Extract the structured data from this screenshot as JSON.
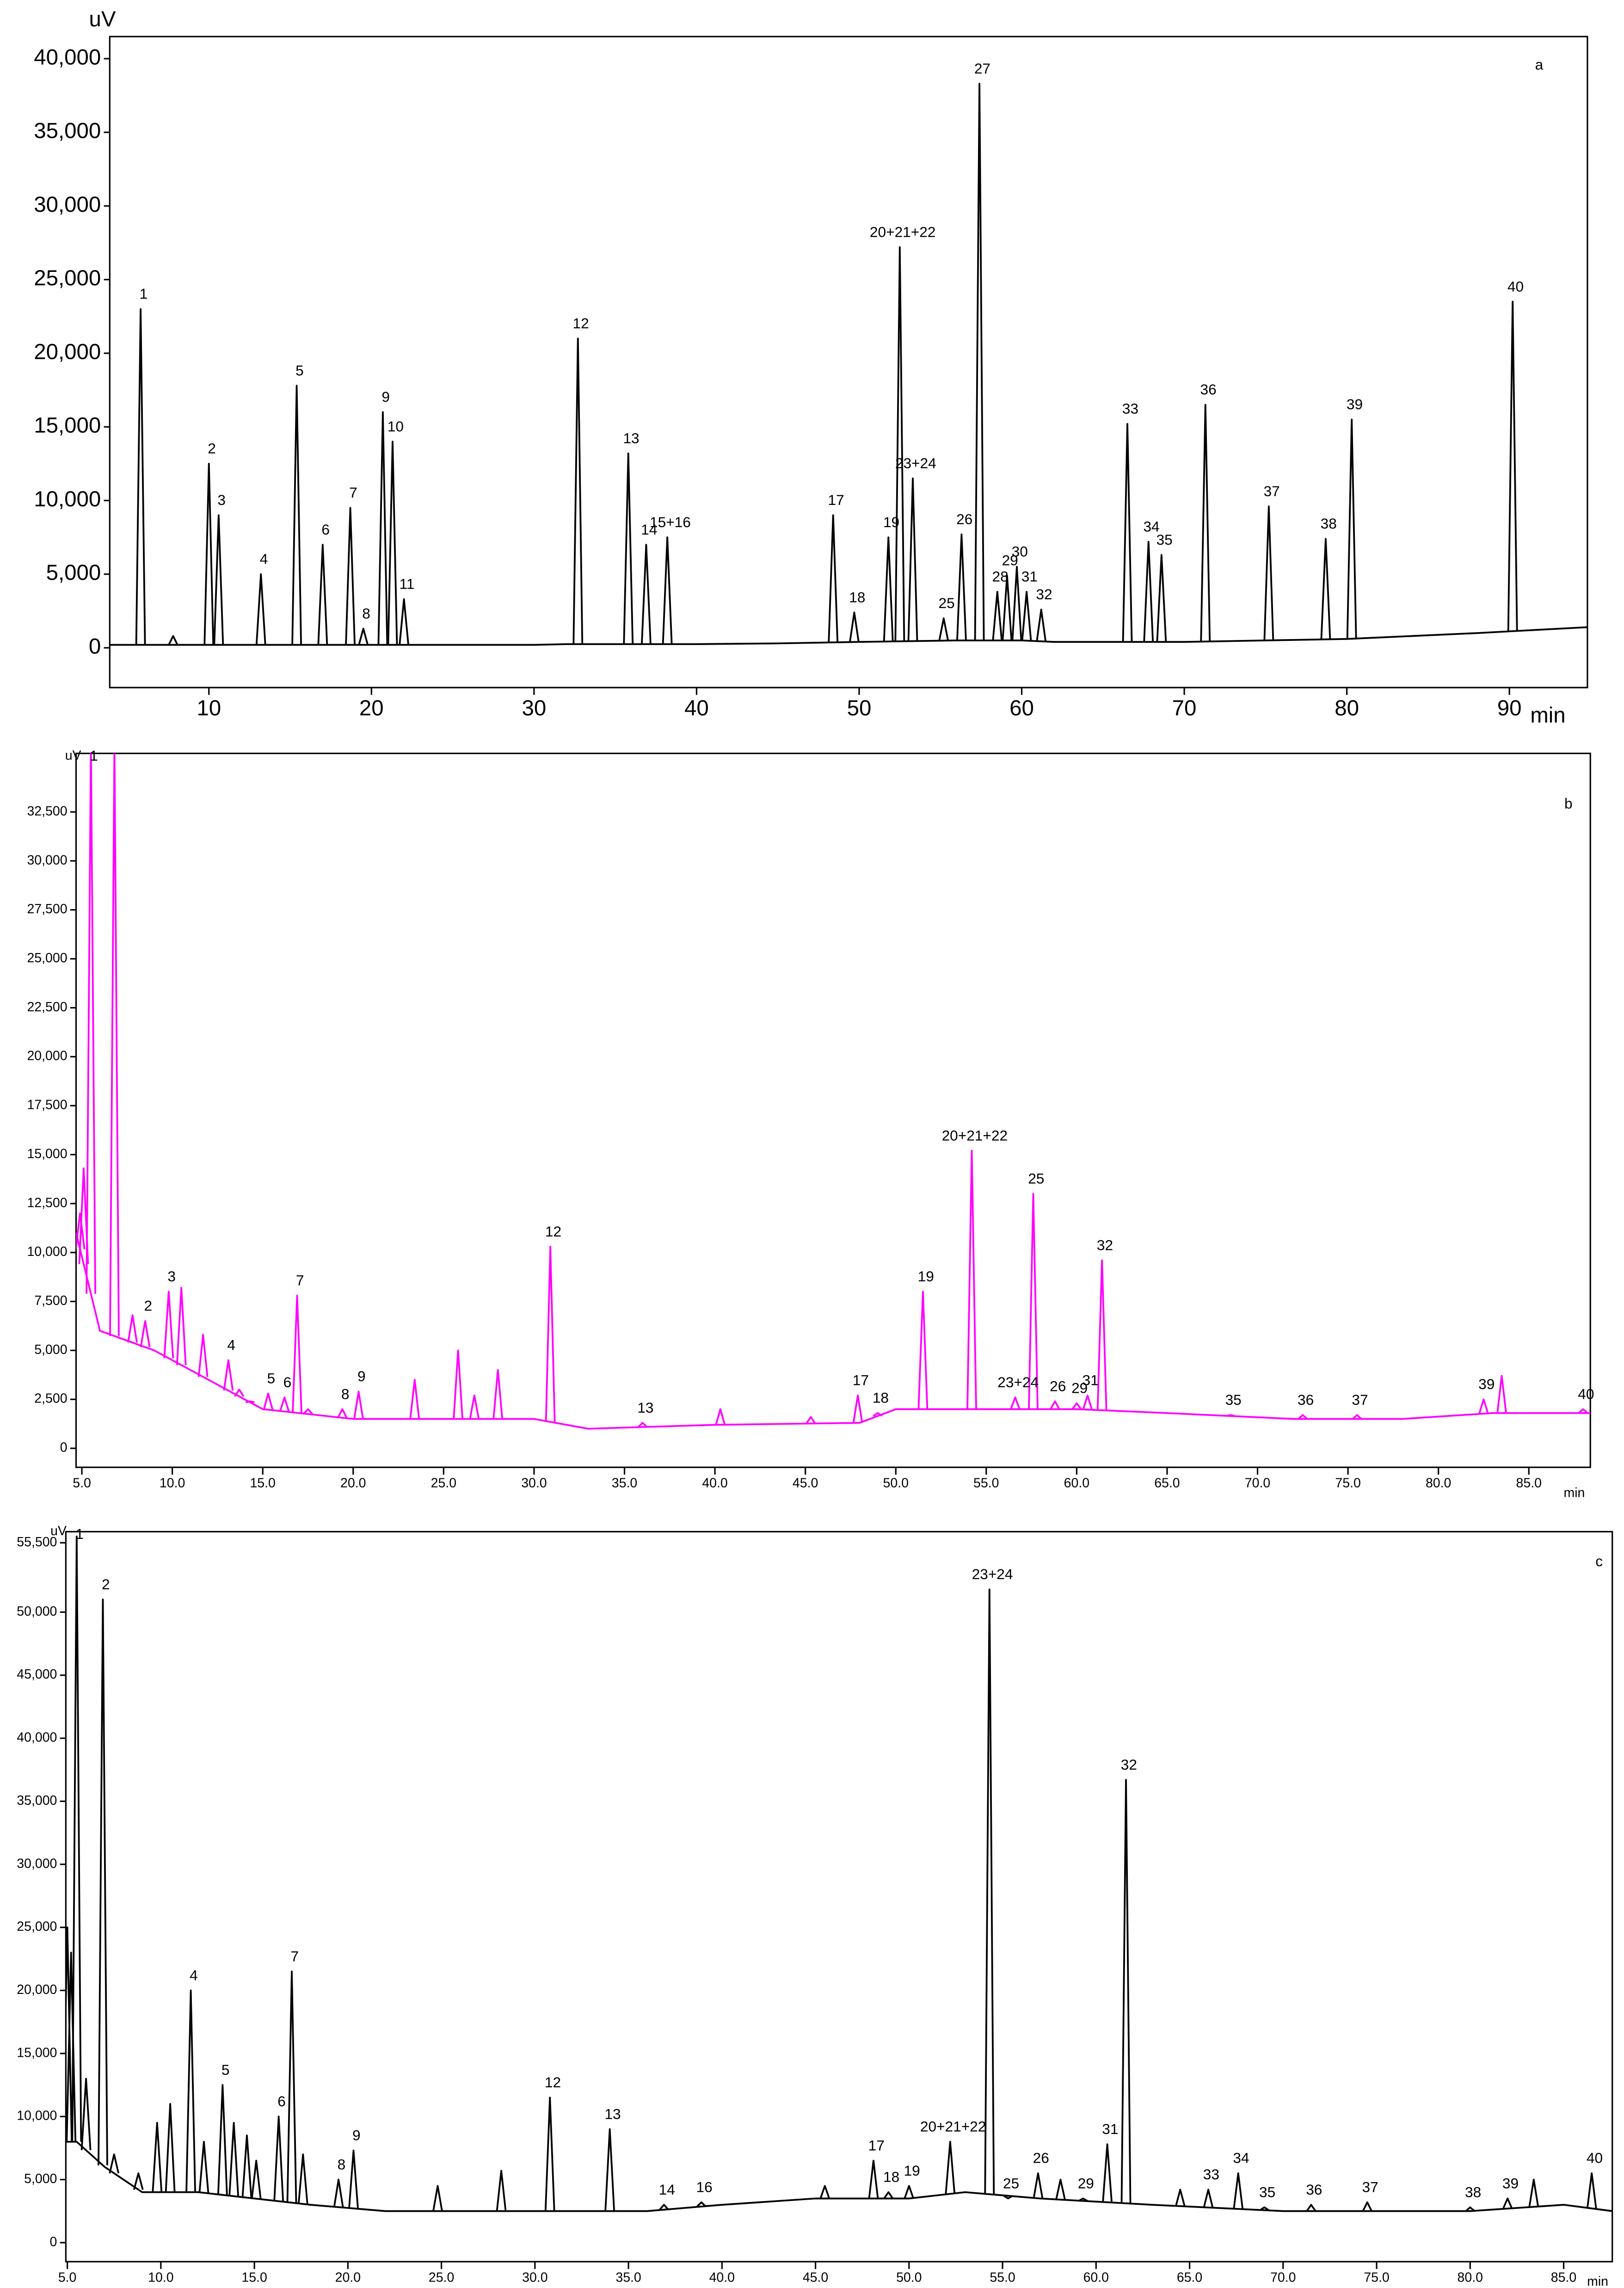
{
  "chart_data": [
    {
      "type": "line",
      "panel_label": "a",
      "y_label": "uV",
      "x_label": "min",
      "color": "#000000",
      "xlim": [
        3.9,
        94.8
      ],
      "ylim": [
        -2700,
        41500
      ],
      "xticks": [
        10,
        20,
        30,
        40,
        50,
        60,
        70,
        80,
        90
      ],
      "yticks": [
        0,
        {
          "value": 5000,
          "label": "5,000"
        },
        {
          "value": 10000,
          "label": "10,000"
        },
        {
          "value": 15000,
          "label": "15,000"
        },
        {
          "value": 20000,
          "label": "20,000"
        },
        {
          "value": 25000,
          "label": "25,000"
        },
        {
          "value": 30000,
          "label": "30,000"
        },
        {
          "value": 35000,
          "label": "35,000"
        },
        {
          "value": 40000,
          "label": "40,000"
        }
      ],
      "x": [
        3.9,
        30,
        32,
        40,
        45,
        50,
        56,
        60,
        62,
        70,
        80,
        88,
        94.8
      ],
      "values": [
        200,
        200,
        250,
        250,
        300,
        400,
        500,
        500,
        400,
        400,
        600,
        1000,
        1400
      ],
      "peaks": [
        {
          "label": "1",
          "x": 5.8,
          "y": 23000
        },
        {
          "label": null,
          "x": 7.8,
          "y": 800
        },
        {
          "label": "2",
          "x": 10.0,
          "y": 12500
        },
        {
          "label": "3",
          "x": 10.6,
          "y": 9000
        },
        {
          "label": "4",
          "x": 13.2,
          "y": 5000
        },
        {
          "label": "5",
          "x": 15.4,
          "y": 17800
        },
        {
          "label": "6",
          "x": 17.0,
          "y": 7000
        },
        {
          "label": "7",
          "x": 18.7,
          "y": 9500
        },
        {
          "label": "8",
          "x": 19.5,
          "y": 1300
        },
        {
          "label": "9",
          "x": 20.7,
          "y": 16000
        },
        {
          "label": "10",
          "x": 21.3,
          "y": 14000
        },
        {
          "label": "11",
          "x": 22.0,
          "y": 3300
        },
        {
          "label": "12",
          "x": 32.7,
          "y": 21000
        },
        {
          "label": "13",
          "x": 35.8,
          "y": 13200
        },
        {
          "label": "14",
          "x": 36.9,
          "y": 7000
        },
        {
          "label": "15+16",
          "x": 38.2,
          "y": 7500
        },
        {
          "label": "17",
          "x": 48.4,
          "y": 9000
        },
        {
          "label": "18",
          "x": 49.7,
          "y": 2400
        },
        {
          "label": "19",
          "x": 51.8,
          "y": 7500
        },
        {
          "label": "20+21+22",
          "x": 52.5,
          "y": 27200
        },
        {
          "label": "23+24",
          "x": 53.3,
          "y": 11500
        },
        {
          "label": "25",
          "x": 55.2,
          "y": 2000
        },
        {
          "label": "26",
          "x": 56.3,
          "y": 7700
        },
        {
          "label": "27",
          "x": 57.4,
          "y": 38300
        },
        {
          "label": "28",
          "x": 58.5,
          "y": 3800
        },
        {
          "label": "29",
          "x": 59.1,
          "y": 4900
        },
        {
          "label": "30",
          "x": 59.7,
          "y": 5500
        },
        {
          "label": "31",
          "x": 60.3,
          "y": 3800
        },
        {
          "label": "32",
          "x": 61.2,
          "y": 2600
        },
        {
          "label": "33",
          "x": 66.5,
          "y": 15200
        },
        {
          "label": "34",
          "x": 67.8,
          "y": 7200
        },
        {
          "label": "35",
          "x": 68.6,
          "y": 6300
        },
        {
          "label": "36",
          "x": 71.3,
          "y": 16500
        },
        {
          "label": "37",
          "x": 75.2,
          "y": 9600
        },
        {
          "label": "38",
          "x": 78.7,
          "y": 7400
        },
        {
          "label": "39",
          "x": 80.3,
          "y": 15500
        },
        {
          "label": "40",
          "x": 90.2,
          "y": 23500
        }
      ]
    },
    {
      "type": "line",
      "panel_label": "b",
      "y_label": "uV",
      "x_label": "min",
      "color": "#ff00ff",
      "xlim": [
        4.68,
        88.4
      ],
      "ylim": [
        -970,
        35490
      ],
      "xticks": [
        {
          "value": 5,
          "label": "5.0"
        },
        {
          "value": 10,
          "label": "10.0"
        },
        {
          "value": 15,
          "label": "15.0"
        },
        {
          "value": 20,
          "label": "20.0"
        },
        {
          "value": 25,
          "label": "25.0"
        },
        {
          "value": 30,
          "label": "30.0"
        },
        {
          "value": 35,
          "label": "35.0"
        },
        {
          "value": 40,
          "label": "40.0"
        },
        {
          "value": 45,
          "label": "45.0"
        },
        {
          "value": 50,
          "label": "50.0"
        },
        {
          "value": 55,
          "label": "55.0"
        },
        {
          "value": 60,
          "label": "60.0"
        },
        {
          "value": 65,
          "label": "65.0"
        },
        {
          "value": 70,
          "label": "70.0"
        },
        {
          "value": 75,
          "label": "75.0"
        },
        {
          "value": 80,
          "label": "80.0"
        },
        {
          "value": 85,
          "label": "85.0"
        }
      ],
      "yticks": [
        0,
        {
          "value": 2500,
          "label": "2,500"
        },
        {
          "value": 5000,
          "label": "5,000"
        },
        {
          "value": 7500,
          "label": "7,500"
        },
        {
          "value": 10000,
          "label": "10,000"
        },
        {
          "value": 12500,
          "label": "12,500"
        },
        {
          "value": 15000,
          "label": "15,000"
        },
        {
          "value": 17500,
          "label": "17,500"
        },
        {
          "value": 20000,
          "label": "20,000"
        },
        {
          "value": 22500,
          "label": "22,500"
        },
        {
          "value": 25000,
          "label": "25,000"
        },
        {
          "value": 27500,
          "label": "27,500"
        },
        {
          "value": 30000,
          "label": "30,000"
        },
        {
          "value": 32500,
          "label": "32,500"
        }
      ],
      "x": [
        4.68,
        6,
        9,
        12,
        15,
        20,
        30,
        33,
        40,
        48,
        50,
        56,
        60,
        65,
        72,
        78,
        83,
        88.4
      ],
      "values": [
        11000,
        6000,
        5000,
        3500,
        2000,
        1500,
        1500,
        1000,
        1200,
        1300,
        2000,
        2000,
        2000,
        1800,
        1500,
        1500,
        1800,
        1800
      ],
      "peaks": [
        {
          "label": null,
          "x": 4.9,
          "y": 12000
        },
        {
          "label": null,
          "x": 5.1,
          "y": 14300
        },
        {
          "label": "1",
          "x": 5.5,
          "y": 36000
        },
        {
          "label": null,
          "x": 6.8,
          "y": 36000
        },
        {
          "label": null,
          "x": 7.8,
          "y": 6800
        },
        {
          "label": "2",
          "x": 8.5,
          "y": 6500
        },
        {
          "label": "3",
          "x": 9.8,
          "y": 8000
        },
        {
          "label": null,
          "x": 10.5,
          "y": 8200
        },
        {
          "label": null,
          "x": 11.7,
          "y": 5800
        },
        {
          "label": "4",
          "x": 13.1,
          "y": 4500
        },
        {
          "label": null,
          "x": 13.7,
          "y": 3000
        },
        {
          "label": null,
          "x": 14.3,
          "y": 2400
        },
        {
          "label": "5",
          "x": 15.3,
          "y": 2800
        },
        {
          "label": "6",
          "x": 16.2,
          "y": 2600
        },
        {
          "label": "7",
          "x": 16.9,
          "y": 7800
        },
        {
          "label": null,
          "x": 17.5,
          "y": 2000
        },
        {
          "label": "8",
          "x": 19.4,
          "y": 2000
        },
        {
          "label": "9",
          "x": 20.3,
          "y": 2900
        },
        {
          "label": null,
          "x": 23.4,
          "y": 3500
        },
        {
          "label": null,
          "x": 25.8,
          "y": 5000
        },
        {
          "label": null,
          "x": 26.7,
          "y": 2700
        },
        {
          "label": null,
          "x": 28.0,
          "y": 4000
        },
        {
          "label": "12",
          "x": 30.9,
          "y": 10300
        },
        {
          "label": "13",
          "x": 36.0,
          "y": 1300
        },
        {
          "label": null,
          "x": 40.3,
          "y": 2000
        },
        {
          "label": null,
          "x": 45.3,
          "y": 1600
        },
        {
          "label": "17",
          "x": 47.9,
          "y": 2700
        },
        {
          "label": "18",
          "x": 49.0,
          "y": 1800
        },
        {
          "label": "19",
          "x": 51.5,
          "y": 8000
        },
        {
          "label": "20+21+22",
          "x": 54.2,
          "y": 15200
        },
        {
          "label": "23+24",
          "x": 56.6,
          "y": 2600
        },
        {
          "label": "25",
          "x": 57.6,
          "y": 13000
        },
        {
          "label": "26",
          "x": 58.8,
          "y": 2400
        },
        {
          "label": "29",
          "x": 60.0,
          "y": 2300
        },
        {
          "label": "31",
          "x": 60.6,
          "y": 2700
        },
        {
          "label": "32",
          "x": 61.4,
          "y": 9600
        },
        {
          "label": "35",
          "x": 68.5,
          "y": 1700
        },
        {
          "label": "36",
          "x": 72.5,
          "y": 1700
        },
        {
          "label": "37",
          "x": 75.5,
          "y": 1700
        },
        {
          "label": "39",
          "x": 82.5,
          "y": 2500
        },
        {
          "label": null,
          "x": 83.5,
          "y": 3700
        },
        {
          "label": "40",
          "x": 88.0,
          "y": 2000
        }
      ]
    },
    {
      "type": "line",
      "panel_label": "c",
      "y_label": "uV",
      "x_label": "min",
      "color": "#000000",
      "xlim": [
        4.92,
        87.6
      ],
      "ylim": [
        -1510,
        56380
      ],
      "xticks": [
        {
          "value": 5,
          "label": "5.0"
        },
        {
          "value": 10,
          "label": "10.0"
        },
        {
          "value": 15,
          "label": "15.0"
        },
        {
          "value": 20,
          "label": "20.0"
        },
        {
          "value": 25,
          "label": "25.0"
        },
        {
          "value": 30,
          "label": "30.0"
        },
        {
          "value": 35,
          "label": "35.0"
        },
        {
          "value": 40,
          "label": "40.0"
        },
        {
          "value": 45,
          "label": "45.0"
        },
        {
          "value": 50,
          "label": "50.0"
        },
        {
          "value": 55,
          "label": "55.0"
        },
        {
          "value": 60,
          "label": "60.0"
        },
        {
          "value": 65,
          "label": "65.0"
        },
        {
          "value": 70,
          "label": "70.0"
        },
        {
          "value": 75,
          "label": "75.0"
        },
        {
          "value": 80,
          "label": "80.0"
        },
        {
          "value": 85,
          "label": "85.0"
        }
      ],
      "yticks": [
        0,
        {
          "value": 5000,
          "label": "5,000"
        },
        {
          "value": 10000,
          "label": "10,000"
        },
        {
          "value": 15000,
          "label": "15,000"
        },
        {
          "value": 20000,
          "label": "20,000"
        },
        {
          "value": 25000,
          "label": "25,000"
        },
        {
          "value": 30000,
          "label": "30,000"
        },
        {
          "value": 35000,
          "label": "35,000"
        },
        {
          "value": 40000,
          "label": "40,000"
        },
        {
          "value": 45000,
          "label": "45,000"
        },
        {
          "value": 50000,
          "label": "50,000"
        },
        {
          "value": 55500,
          "label": "55,500"
        }
      ],
      "x": [
        4.92,
        5.5,
        7,
        9,
        12,
        18,
        22,
        30,
        36,
        40,
        45,
        50,
        53,
        57,
        63,
        70,
        80,
        85,
        87.6
      ],
      "values": [
        8000,
        8000,
        6000,
        4000,
        4000,
        3000,
        2500,
        2500,
        2500,
        3000,
        3500,
        3500,
        4000,
        3500,
        3000,
        2500,
        2500,
        3000,
        2500
      ],
      "peaks": [
        {
          "label": null,
          "x": 5.0,
          "y": 25000
        },
        {
          "label": null,
          "x": 5.2,
          "y": 23000
        },
        {
          "label": "1",
          "x": 5.5,
          "y": 56000
        },
        {
          "label": null,
          "x": 6.0,
          "y": 13000
        },
        {
          "label": "2",
          "x": 6.9,
          "y": 51000
        },
        {
          "label": null,
          "x": 7.5,
          "y": 7000
        },
        {
          "label": null,
          "x": 8.8,
          "y": 5500
        },
        {
          "label": null,
          "x": 9.8,
          "y": 9500
        },
        {
          "label": null,
          "x": 10.5,
          "y": 11000
        },
        {
          "label": "4",
          "x": 11.6,
          "y": 20000
        },
        {
          "label": null,
          "x": 12.3,
          "y": 8000
        },
        {
          "label": "5",
          "x": 13.3,
          "y": 12500
        },
        {
          "label": null,
          "x": 13.9,
          "y": 9500
        },
        {
          "label": null,
          "x": 14.6,
          "y": 8500
        },
        {
          "label": null,
          "x": 15.1,
          "y": 6500
        },
        {
          "label": "6",
          "x": 16.3,
          "y": 10000
        },
        {
          "label": "7",
          "x": 17.0,
          "y": 21500
        },
        {
          "label": null,
          "x": 17.6,
          "y": 7000
        },
        {
          "label": "8",
          "x": 19.5,
          "y": 5000
        },
        {
          "label": "9",
          "x": 20.3,
          "y": 7300
        },
        {
          "label": null,
          "x": 24.8,
          "y": 4500
        },
        {
          "label": null,
          "x": 28.2,
          "y": 5700
        },
        {
          "label": "12",
          "x": 30.8,
          "y": 11500
        },
        {
          "label": "13",
          "x": 34.0,
          "y": 9000
        },
        {
          "label": "14",
          "x": 36.9,
          "y": 3000
        },
        {
          "label": "16",
          "x": 38.9,
          "y": 3200
        },
        {
          "label": null,
          "x": 45.5,
          "y": 4500
        },
        {
          "label": "17",
          "x": 48.1,
          "y": 6500
        },
        {
          "label": "18",
          "x": 48.9,
          "y": 4000
        },
        {
          "label": "19",
          "x": 50.0,
          "y": 4500
        },
        {
          "label": "20+21+22",
          "x": 52.2,
          "y": 8000
        },
        {
          "label": "23+24",
          "x": 54.3,
          "y": 51800
        },
        {
          "label": "25",
          "x": 55.3,
          "y": 3500
        },
        {
          "label": "26",
          "x": 56.9,
          "y": 5500
        },
        {
          "label": null,
          "x": 58.1,
          "y": 5000
        },
        {
          "label": "29",
          "x": 59.3,
          "y": 3500
        },
        {
          "label": "31",
          "x": 60.6,
          "y": 7800
        },
        {
          "label": "32",
          "x": 61.6,
          "y": 36700
        },
        {
          "label": null,
          "x": 64.5,
          "y": 4200
        },
        {
          "label": "33",
          "x": 66.0,
          "y": 4200
        },
        {
          "label": "34",
          "x": 67.6,
          "y": 5500
        },
        {
          "label": "35",
          "x": 69.0,
          "y": 2800
        },
        {
          "label": "36",
          "x": 71.5,
          "y": 3000
        },
        {
          "label": "37",
          "x": 74.5,
          "y": 3200
        },
        {
          "label": "38",
          "x": 80.0,
          "y": 2800
        },
        {
          "label": "39",
          "x": 82.0,
          "y": 3500
        },
        {
          "label": null,
          "x": 83.4,
          "y": 5000
        },
        {
          "label": "40",
          "x": 86.5,
          "y": 5500
        }
      ]
    }
  ]
}
